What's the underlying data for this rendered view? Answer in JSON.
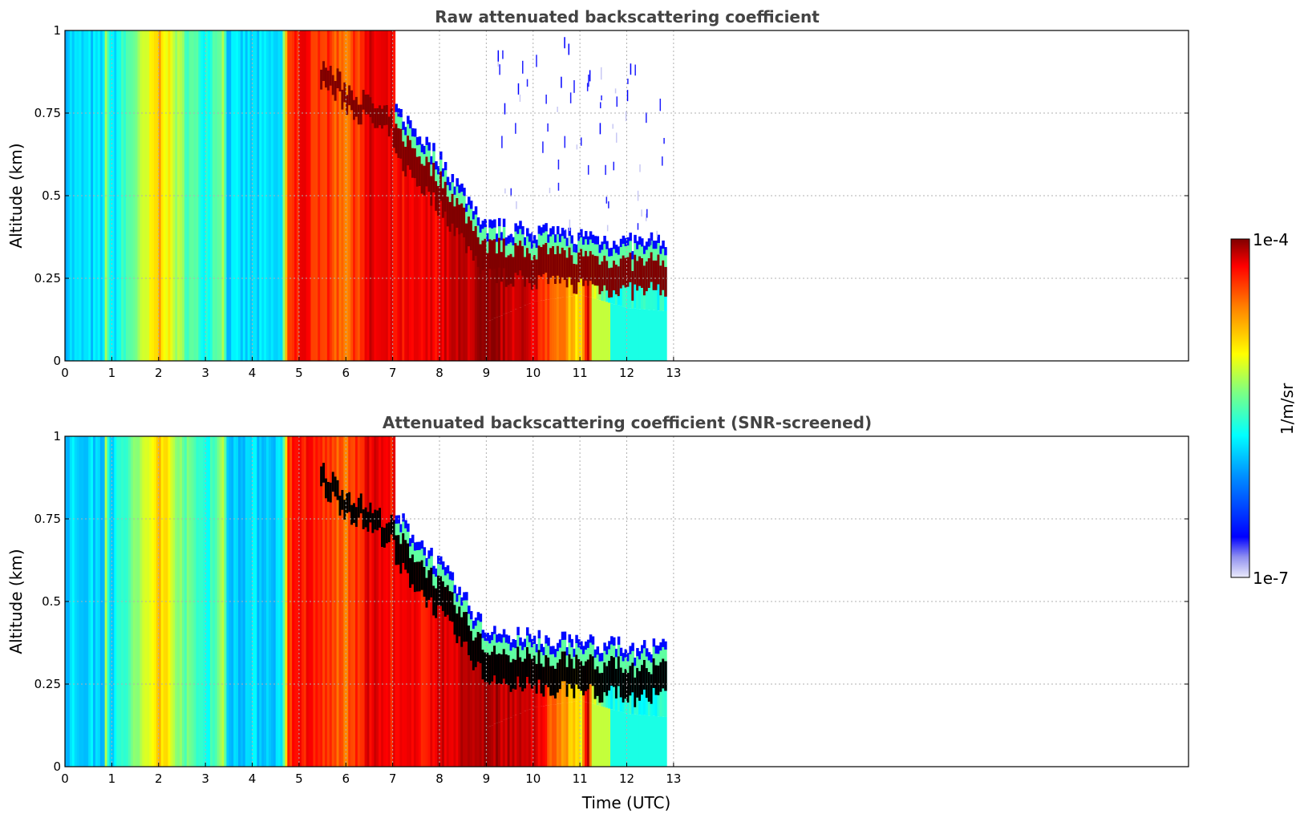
{
  "chart_data": [
    {
      "type": "heatmap",
      "title": "Raw attenuated backscattering coefficient",
      "xlabel": "",
      "ylabel": "Altitude (km)",
      "xlim": [
        0,
        24
      ],
      "ylim": [
        0,
        1
      ],
      "xticks": [
        0,
        1,
        2,
        3,
        4,
        5,
        6,
        7,
        8,
        9,
        10,
        11,
        12,
        13
      ],
      "yticks": [
        0,
        0.25,
        0.5,
        0.75,
        1
      ],
      "ytick_labels": [
        "0",
        "0.25",
        "0.5",
        "0.75",
        "1"
      ],
      "grid": true,
      "data_extent_hours": 12.85,
      "log10_value_at_time": {
        "t": [
          0,
          0.8,
          0.85,
          0.95,
          1.8,
          2.0,
          2.3,
          2.6,
          3.0,
          3.35,
          3.45,
          4.6,
          4.75,
          5.0,
          5.5,
          6.0,
          6.5,
          7.0,
          7.5,
          8.0,
          9.0,
          10.0,
          11.0,
          11.15,
          11.25,
          11.6,
          12.85
        ],
        "v": [
          -6.0,
          -6.0,
          -5.3,
          -6.0,
          -5.2,
          -4.9,
          -5.3,
          -5.6,
          -5.8,
          -5.4,
          -6.0,
          -6.0,
          -4.5,
          -4.4,
          -4.5,
          -4.7,
          -4.3,
          -4.4,
          -4.4,
          -4.3,
          -4.1,
          -4.3,
          -5.1,
          -4.2,
          -5.2,
          -5.8,
          -5.8
        ]
      },
      "layer_top_km": {
        "t": [
          5.4,
          6.0,
          7.0,
          7.2,
          8.0,
          9.0,
          10.0,
          11.0,
          12.0,
          12.85
        ],
        "alt": [
          0.88,
          0.8,
          0.7,
          0.68,
          0.55,
          0.35,
          0.33,
          0.32,
          0.3,
          0.3
        ]
      },
      "layer_base_km": {
        "t": [
          9.0,
          10.0,
          11.0,
          12.0,
          12.85
        ],
        "alt": [
          0.12,
          0.18,
          0.2,
          0.16,
          0.15
        ]
      },
      "noise_column_tops_km": [
        0.94,
        0.86,
        0.98,
        0.82,
        0.9,
        0.78,
        0.96,
        0.88,
        0.72,
        0.84
      ]
    },
    {
      "type": "heatmap",
      "title": "Attenuated backscattering coefficient (SNR-screened)",
      "xlabel": "Time (UTC)",
      "ylabel": "Altitude (km)",
      "xlim": [
        0,
        24
      ],
      "ylim": [
        0,
        1
      ],
      "xticks": [
        0,
        1,
        2,
        3,
        4,
        5,
        6,
        7,
        8,
        9,
        10,
        11,
        12,
        13
      ],
      "yticks": [
        0,
        0.25,
        0.5,
        0.75,
        1
      ],
      "ytick_labels": [
        "0",
        "0.25",
        "0.5",
        "0.75",
        "1"
      ],
      "grid": true,
      "data_extent_hours": 12.85,
      "screened_color": "#000000"
    }
  ],
  "colorbar": {
    "label": "1/m/sr",
    "max_label": "1e-4",
    "min_label": "1e-7",
    "scale": "log",
    "range": [
      1e-07,
      0.0001
    ],
    "colormap": "jet",
    "stops": [
      "#ebebfb",
      "#0000ff",
      "#00a0ff",
      "#00ffff",
      "#80ff80",
      "#ffff00",
      "#ff8000",
      "#ff0000",
      "#800000"
    ]
  }
}
